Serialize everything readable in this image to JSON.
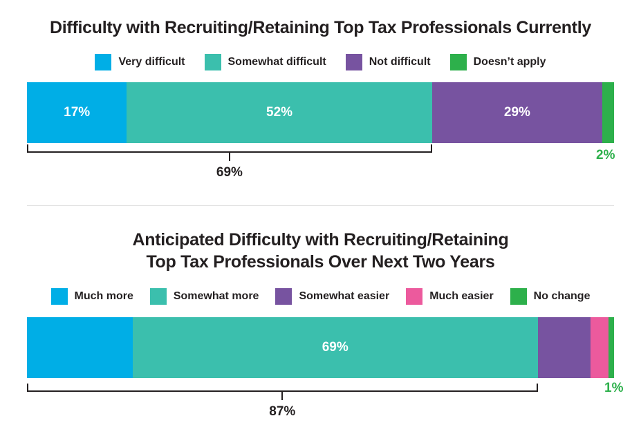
{
  "chart_data": [
    {
      "type": "bar",
      "orientation": "horizontal-stacked",
      "title": "Difficulty with Recruiting/Retaining Top Tax Professionals Currently",
      "series": [
        {
          "name": "Very difficult",
          "value": 17,
          "label": "17%",
          "color": "#00aee6"
        },
        {
          "name": "Somewhat difficult",
          "value": 52,
          "label": "52%",
          "color": "#3bbfad"
        },
        {
          "name": "Not difficult",
          "value": 29,
          "label": "29%",
          "color": "#7753a0"
        },
        {
          "name": "Doesn’t apply",
          "value": 2,
          "label": "",
          "color": "#2db04b"
        }
      ],
      "outside_label": "2%",
      "bracket": {
        "label": "69%",
        "covers": [
          "Very difficult",
          "Somewhat difficult"
        ]
      },
      "legend": "top"
    },
    {
      "type": "bar",
      "orientation": "horizontal-stacked",
      "title": "Anticipated Difficulty with Recruiting/Retaining\nTop Tax Professionals Over  Next Two Years",
      "title_lines": [
        "Anticipated Difficulty with Recruiting/Retaining",
        "Top Tax Professionals Over  Next Two Years"
      ],
      "series": [
        {
          "name": "Much more",
          "value": 18,
          "label": "",
          "color": "#00aee6"
        },
        {
          "name": "Somewhat more",
          "value": 69,
          "label": "69%",
          "color": "#3bbfad"
        },
        {
          "name": "Somewhat easier",
          "value": 9,
          "label": "",
          "color": "#7753a0"
        },
        {
          "name": "Much easier",
          "value": 3,
          "label": "",
          "color": "#ec5a9d"
        },
        {
          "name": "No change",
          "value": 1,
          "label": "",
          "color": "#2db04b"
        }
      ],
      "outside_label": "1%",
      "bracket": {
        "label": "87%",
        "covers": [
          "Much more",
          "Somewhat more"
        ]
      },
      "legend": "top"
    }
  ]
}
